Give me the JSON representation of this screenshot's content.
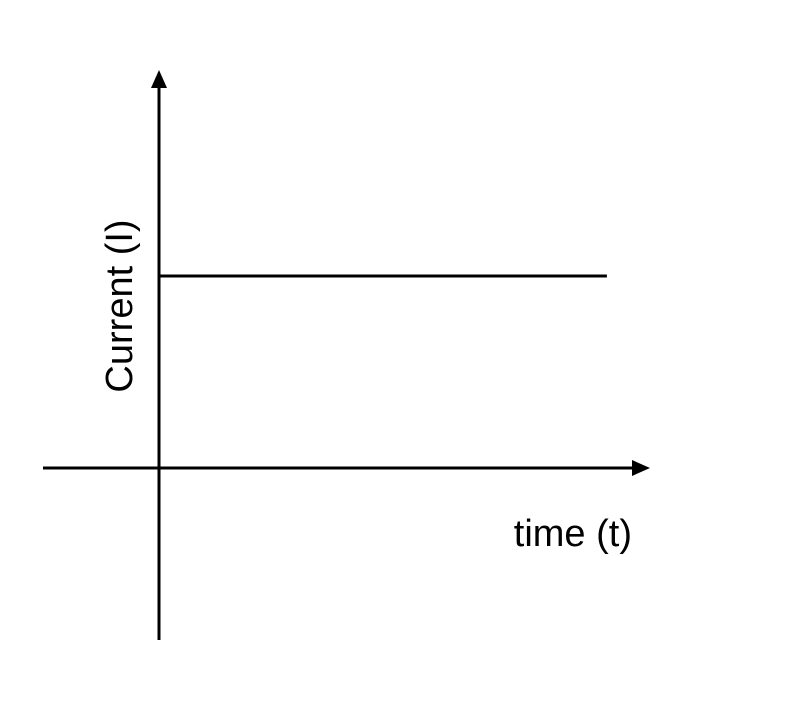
{
  "chart_data": {
    "type": "line",
    "title": "",
    "xlabel": "time (t)",
    "ylabel": "Current (I)",
    "grid": false,
    "legend": "none",
    "ticks": false,
    "series": [
      {
        "values": [
          0.6,
          0.6
        ],
        "x": [
          0,
          0.79
        ],
        "color": "#000000"
      }
    ],
    "xlim": [
      0,
      1
    ],
    "ylim": [
      0,
      1
    ]
  }
}
